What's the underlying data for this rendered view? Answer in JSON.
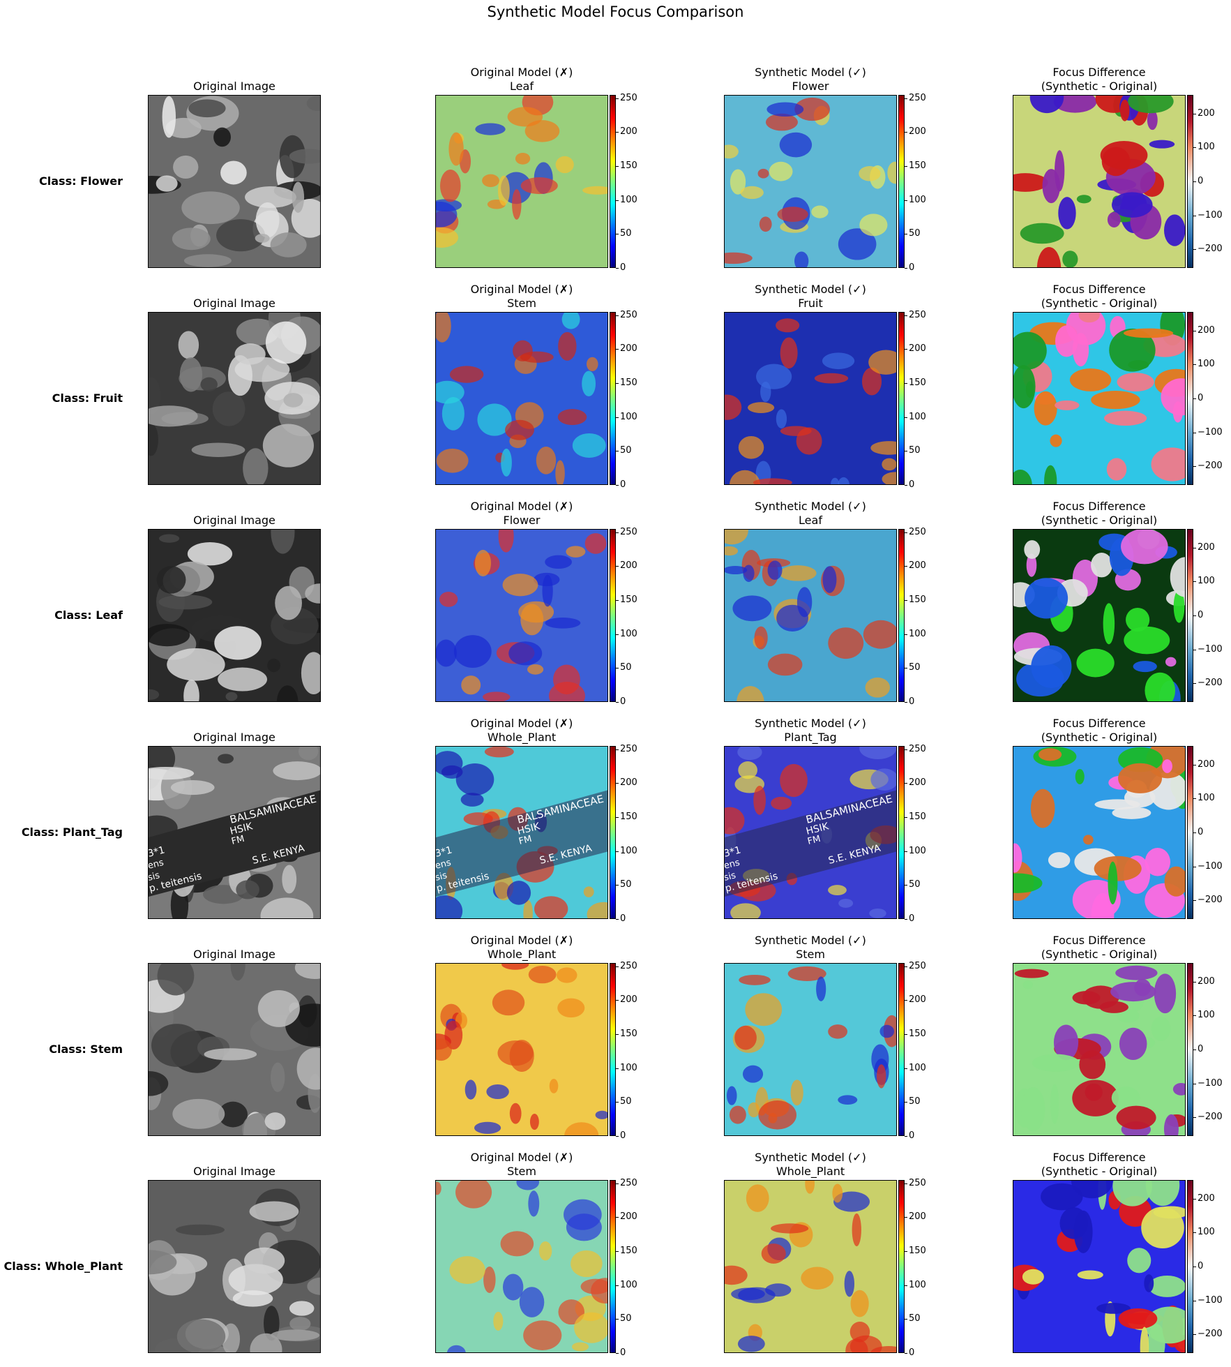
{
  "chart_data": {
    "type": "heatmap",
    "title": "Synthetic Model Focus Comparison",
    "column_titles": {
      "original_image": "Original Image",
      "original_model": "Original Model (✗)",
      "synthetic_model": "Synthetic Model (✓)",
      "difference": [
        "Focus Difference",
        "(Synthetic - Original)"
      ]
    },
    "colorbar_attention": {
      "range": [
        0,
        255
      ],
      "ticks": [
        "0",
        "50",
        "100",
        "150",
        "200",
        "250"
      ],
      "colormap": "jet"
    },
    "colorbar_difference": {
      "range": [
        -255,
        255
      ],
      "ticks": [
        "−200",
        "−100",
        "0",
        "100",
        "200"
      ],
      "colormap": "diverging"
    },
    "rows": [
      {
        "class_label": "Class: Flower",
        "original_pred": "Leaf",
        "synthetic_pred": "Flower"
      },
      {
        "class_label": "Class: Fruit",
        "original_pred": "Stem",
        "synthetic_pred": "Fruit"
      },
      {
        "class_label": "Class: Leaf",
        "original_pred": "Flower",
        "synthetic_pred": "Leaf"
      },
      {
        "class_label": "Class: Plant_Tag",
        "original_pred": "Whole_Plant",
        "synthetic_pred": "Plant_Tag"
      },
      {
        "class_label": "Class: Stem",
        "original_pred": "Whole_Plant",
        "synthetic_pred": "Stem"
      },
      {
        "class_label": "Class: Whole_Plant",
        "original_pred": "Stem",
        "synthetic_pred": "Whole_Plant"
      }
    ],
    "tag_text": [
      "BALSAMINACEAE",
      "HSIK",
      "FM",
      "S.E. KENYA",
      "3*1",
      "ens",
      "sis",
      "p. teitensis"
    ]
  }
}
